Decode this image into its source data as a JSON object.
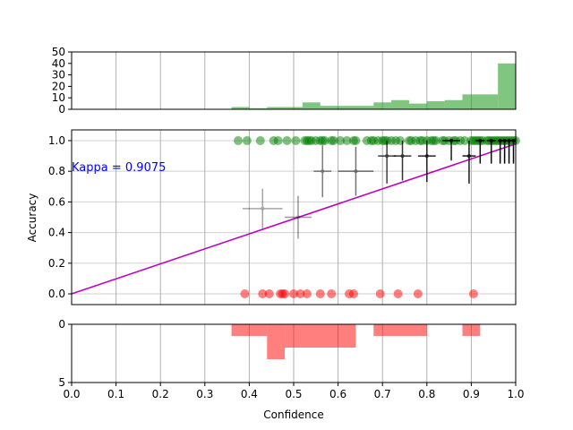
{
  "chart_data": [
    {
      "panel": "top-histogram",
      "type": "bar",
      "description": "Histogram of predicted confidences (all samples)",
      "color": "#2ca02c",
      "x_range": [
        0.0,
        1.0
      ],
      "ylim": [
        0,
        50
      ],
      "yticks": [
        0,
        10,
        20,
        30,
        40,
        50
      ],
      "bins": [
        {
          "x0": 0.36,
          "x1": 0.4,
          "count": 2
        },
        {
          "x0": 0.4,
          "x1": 0.44,
          "count": 1
        },
        {
          "x0": 0.44,
          "x1": 0.52,
          "count": 2
        },
        {
          "x0": 0.52,
          "x1": 0.56,
          "count": 6
        },
        {
          "x0": 0.56,
          "x1": 0.68,
          "count": 3
        },
        {
          "x0": 0.68,
          "x1": 0.72,
          "count": 6
        },
        {
          "x0": 0.72,
          "x1": 0.76,
          "count": 8
        },
        {
          "x0": 0.76,
          "x1": 0.8,
          "count": 5
        },
        {
          "x0": 0.8,
          "x1": 0.84,
          "count": 7
        },
        {
          "x0": 0.84,
          "x1": 0.88,
          "count": 8
        },
        {
          "x0": 0.88,
          "x1": 0.96,
          "count": 13
        },
        {
          "x0": 0.96,
          "x1": 1.0,
          "count": 40
        }
      ]
    },
    {
      "panel": "main-reliability",
      "type": "scatter",
      "xlim": [
        0.0,
        1.0
      ],
      "ylim": [
        -0.07,
        1.07
      ],
      "ylabel": "Accuracy",
      "yticks": [
        "0.0",
        "0.2",
        "0.4",
        "0.6",
        "0.8",
        "1.0"
      ],
      "annotation": "Kappa = 0.9075",
      "fit_line": {
        "color": "#bf00bf",
        "x": [
          0.0,
          1.0
        ],
        "y": [
          0.0,
          0.9786
        ]
      },
      "correct_color": "#008000",
      "incorrect_color": "#ff0000",
      "correct_x": [
        0.375,
        0.395,
        0.425,
        0.455,
        0.465,
        0.485,
        0.505,
        0.525,
        0.53,
        0.535,
        0.54,
        0.55,
        0.56,
        0.565,
        0.57,
        0.585,
        0.59,
        0.605,
        0.62,
        0.635,
        0.64,
        0.665,
        0.675,
        0.68,
        0.69,
        0.7,
        0.705,
        0.71,
        0.72,
        0.73,
        0.74,
        0.76,
        0.765,
        0.775,
        0.785,
        0.79,
        0.8,
        0.81,
        0.815,
        0.82,
        0.835,
        0.84,
        0.85,
        0.86,
        0.865,
        0.875,
        0.885,
        0.9,
        0.905,
        0.91,
        0.915,
        0.92,
        0.925,
        0.935,
        0.94,
        0.945,
        0.95,
        0.955,
        0.96,
        0.965,
        0.97,
        0.975,
        0.98,
        0.985,
        0.99,
        0.995,
        1.0
      ],
      "incorrect_x": [
        0.39,
        0.43,
        0.445,
        0.47,
        0.475,
        0.48,
        0.5,
        0.515,
        0.53,
        0.56,
        0.585,
        0.625,
        0.635,
        0.695,
        0.735,
        0.78,
        0.905
      ],
      "binned_points": [
        {
          "x": 0.43,
          "y": 0.556,
          "xerr": 0.045,
          "yerr": 0.13,
          "alpha": 0.35
        },
        {
          "x": 0.51,
          "y": 0.5,
          "xerr": 0.03,
          "yerr": 0.14,
          "alpha": 0.4
        },
        {
          "x": 0.565,
          "y": 0.8,
          "xerr": 0.02,
          "yerr": 0.17,
          "alpha": 0.5
        },
        {
          "x": 0.64,
          "y": 0.8,
          "xerr": 0.04,
          "yerr": 0.16,
          "alpha": 0.55
        },
        {
          "x": 0.71,
          "y": 0.9,
          "xerr": 0.02,
          "yerr": 0.18,
          "alpha": 0.75
        },
        {
          "x": 0.745,
          "y": 0.9,
          "xerr": 0.02,
          "yerr": 0.16,
          "alpha": 0.8
        },
        {
          "x": 0.8,
          "y": 0.9,
          "xerr": 0.02,
          "yerr": 0.17,
          "alpha": 0.85
        },
        {
          "x": 0.855,
          "y": 1.0,
          "xerr": 0.02,
          "yerr": 0.13,
          "alpha": 0.9
        },
        {
          "x": 0.895,
          "y": 0.9,
          "xerr": 0.015,
          "yerr": 0.18,
          "alpha": 0.9
        },
        {
          "x": 0.92,
          "y": 1.0,
          "xerr": 0.01,
          "yerr": 0.15,
          "alpha": 0.95
        },
        {
          "x": 0.945,
          "y": 1.0,
          "xerr": 0.01,
          "yerr": 0.15,
          "alpha": 0.95
        },
        {
          "x": 0.965,
          "y": 1.0,
          "xerr": 0.005,
          "yerr": 0.15,
          "alpha": 1.0
        },
        {
          "x": 0.975,
          "y": 1.0,
          "xerr": 0.005,
          "yerr": 0.15,
          "alpha": 1.0
        },
        {
          "x": 0.985,
          "y": 1.0,
          "xerr": 0.005,
          "yerr": 0.15,
          "alpha": 1.0
        },
        {
          "x": 0.995,
          "y": 1.0,
          "xerr": 0.005,
          "yerr": 0.15,
          "alpha": 1.0
        }
      ]
    },
    {
      "panel": "bottom-histogram",
      "type": "bar",
      "description": "Histogram of confidences for incorrect predictions (inverted axis)",
      "color": "#ff0000",
      "xlabel": "Confidence",
      "x_range": [
        0.0,
        1.0
      ],
      "ylim": [
        0,
        5
      ],
      "yticks": [
        "0",
        "5"
      ],
      "xticks": [
        "0.0",
        "0.1",
        "0.2",
        "0.3",
        "0.4",
        "0.5",
        "0.6",
        "0.7",
        "0.8",
        "0.9",
        "1.0"
      ],
      "bins": [
        {
          "x0": 0.36,
          "x1": 0.44,
          "count": 1
        },
        {
          "x0": 0.44,
          "x1": 0.48,
          "count": 3
        },
        {
          "x0": 0.48,
          "x1": 0.64,
          "count": 2
        },
        {
          "x0": 0.68,
          "x1": 0.8,
          "count": 1
        },
        {
          "x0": 0.88,
          "x1": 0.92,
          "count": 1
        }
      ]
    }
  ]
}
